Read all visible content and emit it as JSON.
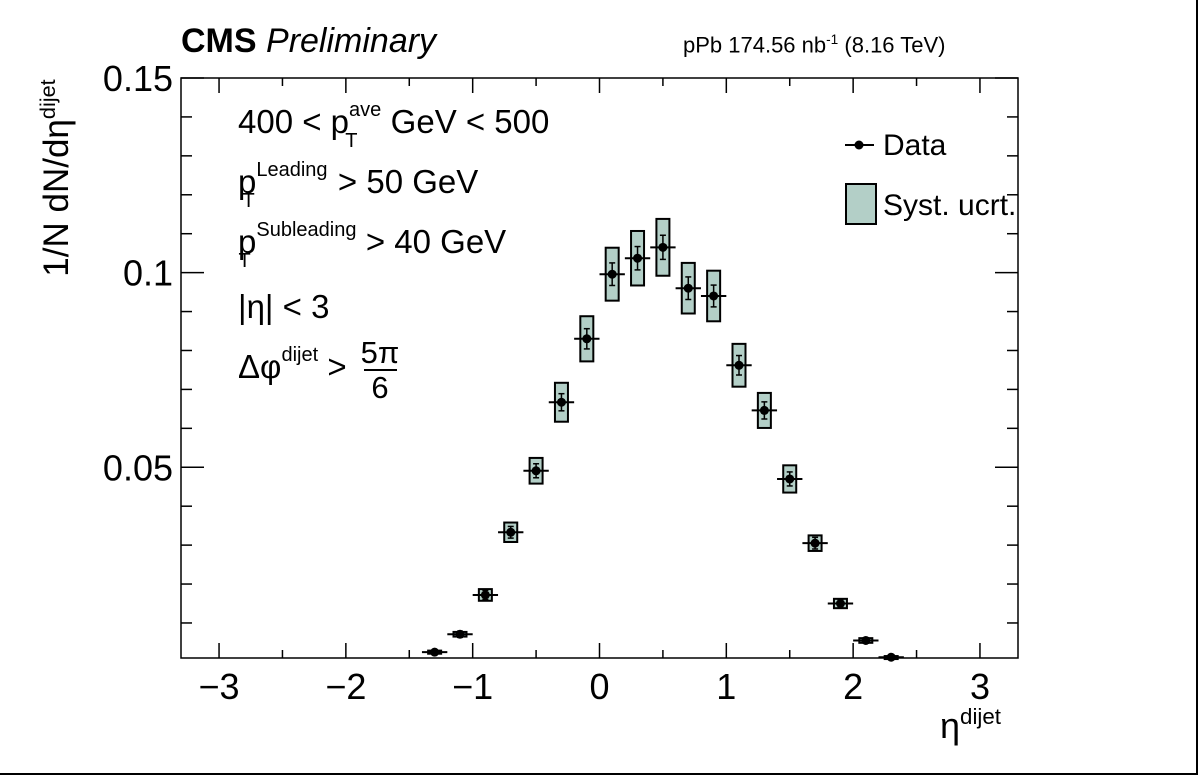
{
  "header": {
    "experiment": "CMS",
    "status": "Preliminary",
    "lumi_prefix": "pPb 174.56 nb",
    "lumi_exponent": "-1",
    "lumi_suffix": "(8.16 TeV)"
  },
  "annotations": {
    "line1_pre": "400 < p",
    "line1_sup": "ave",
    "line1_sub": "T",
    "line1_post": " GeV < 500",
    "line2_pre": "p",
    "line2_sup": "Leading",
    "line2_sub": "T",
    "line2_post": " > 50 GeV",
    "line3_pre": "p",
    "line3_sup": "Subleading",
    "line3_sub": "T",
    "line3_post": " > 40 GeV",
    "line4": "|η| < 3",
    "line5_pre": "Δφ",
    "line5_sup": "dijet",
    "line5_op": " > ",
    "line5_num": "5π",
    "line5_den": "6"
  },
  "chart_data": {
    "type": "scatter",
    "ylabel_main": "1/N dN/dη",
    "ylabel_sup": "dijet",
    "xlabel_main": "η",
    "xlabel_sup": "dijet",
    "xlim": [
      -3.3,
      3.3
    ],
    "ylim": [
      0.001,
      0.15
    ],
    "xticks": [
      {
        "value": -3,
        "label": "−3"
      },
      {
        "value": -2,
        "label": "−2"
      },
      {
        "value": -1,
        "label": "−1"
      },
      {
        "value": 0,
        "label": "0"
      },
      {
        "value": 1,
        "label": "1"
      },
      {
        "value": 2,
        "label": "2"
      },
      {
        "value": 3,
        "label": "3"
      }
    ],
    "yticks": [
      {
        "value": 0.05,
        "label": "0.05"
      },
      {
        "value": 0.1,
        "label": "0.1"
      },
      {
        "value": 0.15,
        "label": "0.15"
      }
    ],
    "legend": {
      "position": "top-right",
      "data_label": "Data",
      "syst_label": "Syst. ucrt."
    },
    "colors": {
      "syst_fill": "#b3cfc7",
      "marker": "#000000"
    },
    "x_half_width": 0.1,
    "points": [
      {
        "x": -1.3,
        "y": 0.0025,
        "stat": 0.0006,
        "syst": 0.0004
      },
      {
        "x": -1.1,
        "y": 0.0071,
        "stat": 0.0008,
        "syst": 0.0006
      },
      {
        "x": -0.9,
        "y": 0.0172,
        "stat": 0.0012,
        "syst": 0.0015
      },
      {
        "x": -0.7,
        "y": 0.0333,
        "stat": 0.0015,
        "syst": 0.0025
      },
      {
        "x": -0.5,
        "y": 0.0491,
        "stat": 0.0018,
        "syst": 0.0033
      },
      {
        "x": -0.3,
        "y": 0.0667,
        "stat": 0.0022,
        "syst": 0.005
      },
      {
        "x": -0.1,
        "y": 0.083,
        "stat": 0.0026,
        "syst": 0.0058
      },
      {
        "x": 0.1,
        "y": 0.0996,
        "stat": 0.0029,
        "syst": 0.0068
      },
      {
        "x": 0.3,
        "y": 0.1037,
        "stat": 0.003,
        "syst": 0.007
      },
      {
        "x": 0.5,
        "y": 0.1065,
        "stat": 0.0031,
        "syst": 0.0073
      },
      {
        "x": 0.7,
        "y": 0.096,
        "stat": 0.0029,
        "syst": 0.0065
      },
      {
        "x": 0.9,
        "y": 0.094,
        "stat": 0.0028,
        "syst": 0.0065
      },
      {
        "x": 1.1,
        "y": 0.0762,
        "stat": 0.0025,
        "syst": 0.0055
      },
      {
        "x": 1.3,
        "y": 0.0646,
        "stat": 0.0022,
        "syst": 0.0045
      },
      {
        "x": 1.5,
        "y": 0.047,
        "stat": 0.0018,
        "syst": 0.0035
      },
      {
        "x": 1.7,
        "y": 0.0305,
        "stat": 0.0015,
        "syst": 0.002
      },
      {
        "x": 1.9,
        "y": 0.015,
        "stat": 0.0011,
        "syst": 0.0012
      },
      {
        "x": 2.1,
        "y": 0.0055,
        "stat": 0.0007,
        "syst": 0.0006
      },
      {
        "x": 2.3,
        "y": 0.0012,
        "stat": 0.0005,
        "syst": 0.0003
      }
    ]
  }
}
